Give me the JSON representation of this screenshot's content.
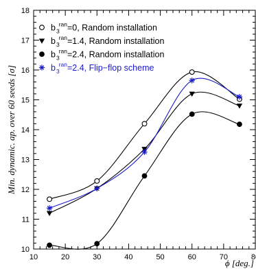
{
  "chart_data": {
    "type": "scatter",
    "ylabel": "Min. dynamic. ap. over 60 seeds [σ]",
    "xlabel": "ϕ [deg.]",
    "xlim": [
      10,
      80
    ],
    "ylim": [
      10,
      18
    ],
    "x_ticks": [
      "10",
      "20",
      "30",
      "40",
      "50",
      "60",
      "70",
      "80"
    ],
    "y_ticks": [
      "10",
      "11",
      "12",
      "13",
      "14",
      "15",
      "16",
      "17",
      "18"
    ],
    "grid": false,
    "legend_position": "top-left",
    "x": [
      15,
      30,
      45,
      60,
      75
    ],
    "series": [
      {
        "legend_main": "b",
        "legend_sup": "ran",
        "legend_sub": "3",
        "legend_rest": "=0, Random installation",
        "marker": "open-circle",
        "color": "#000000",
        "values": [
          11.67,
          12.28,
          14.2,
          15.93,
          15.02
        ]
      },
      {
        "legend_main": "b",
        "legend_sup": "ran",
        "legend_sub": "3",
        "legend_rest": "=1.4, Random installation",
        "marker": "down-triangle",
        "color": "#000000",
        "values": [
          11.2,
          12.03,
          13.35,
          15.2,
          14.8
        ]
      },
      {
        "legend_main": "b",
        "legend_sup": "ran",
        "legend_sub": "3",
        "legend_rest": "=2.4, Random installation",
        "marker": "filled-circle",
        "color": "#000000",
        "values": [
          10.13,
          10.18,
          12.45,
          14.52,
          14.18
        ]
      },
      {
        "legend_main": "b",
        "legend_sup": "ran",
        "legend_sub": "3",
        "legend_rest": "=2.4, Flip−flop scheme",
        "marker": "asterisk",
        "color": "#1a1acc",
        "values": [
          11.37,
          12.03,
          13.25,
          15.65,
          15.1
        ]
      }
    ]
  }
}
